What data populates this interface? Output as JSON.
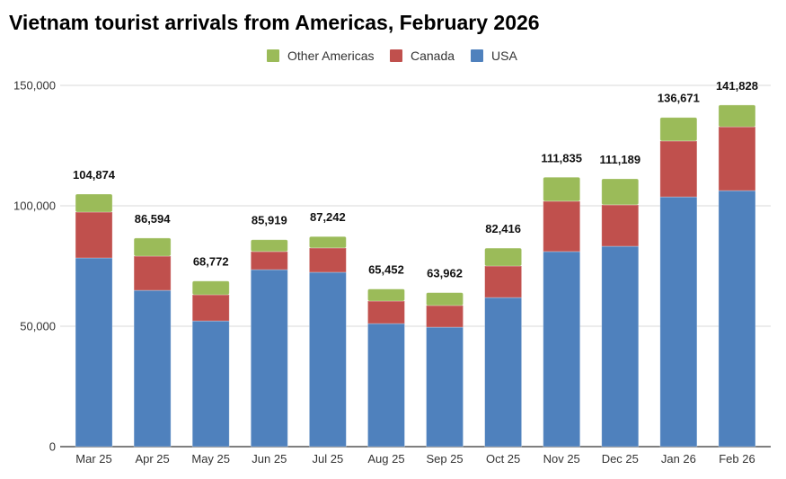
{
  "chart_data": {
    "type": "bar",
    "stacked": true,
    "title": "Vietnam tourist arrivals from Americas, February 2026",
    "xlabel": "",
    "ylabel": "",
    "ylim": [
      0,
      150000
    ],
    "yticks": [
      0,
      50000,
      100000,
      150000
    ],
    "ytick_labels": [
      "0",
      "50,000",
      "100,000",
      "150,000"
    ],
    "grid": true,
    "legend_position": "top-center",
    "categories": [
      "Mar 25",
      "Apr 25",
      "May 25",
      "Jun 25",
      "Jul 25",
      "Aug 25",
      "Sep 25",
      "Oct 25",
      "Nov 25",
      "Dec 25",
      "Jan 26",
      "Feb 26"
    ],
    "series": [
      {
        "name": "USA",
        "color": "#4f81bd",
        "values": [
          78360,
          64900,
          52200,
          73500,
          72400,
          51100,
          49600,
          61900,
          81000,
          83200,
          103700,
          106300
        ]
      },
      {
        "name": "Canada",
        "color": "#c0504d",
        "values": [
          19040,
          14200,
          10860,
          7500,
          10100,
          9350,
          9000,
          13100,
          20900,
          17200,
          23200,
          26500
        ]
      },
      {
        "name": "Other Americas",
        "color": "#9bbb59",
        "values": [
          7474,
          7494,
          5712,
          4919,
          4742,
          5002,
          5362,
          7416,
          9935,
          10789,
          9771,
          9028
        ]
      }
    ],
    "legend_order": [
      "Other Americas",
      "Canada",
      "USA"
    ],
    "totals": [
      104874,
      86594,
      68772,
      85919,
      87242,
      65452,
      63962,
      82416,
      111835,
      111189,
      136671,
      141828
    ],
    "total_labels": [
      "104,874",
      "86,594",
      "68,772",
      "85,919",
      "87,242",
      "65,452",
      "63,962",
      "82,416",
      "111,835",
      "111,189",
      "136,671",
      "141,828"
    ]
  }
}
